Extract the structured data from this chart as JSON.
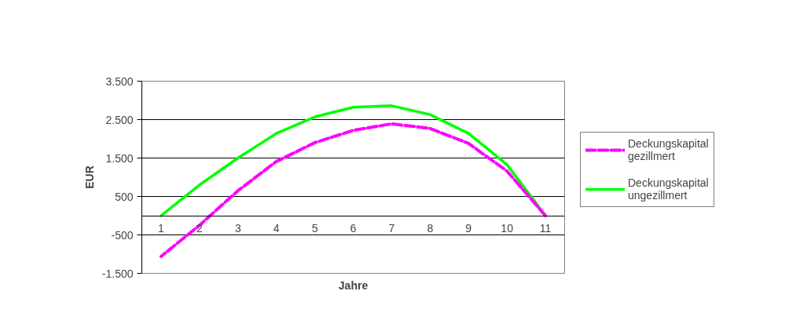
{
  "chart_data": {
    "type": "line",
    "xlabel": "Jahre",
    "ylabel": "EUR",
    "categories": [
      "1",
      "2",
      "3",
      "4",
      "5",
      "6",
      "7",
      "8",
      "9",
      "10",
      "11"
    ],
    "series": [
      {
        "name": "Deckungskapital gezillmert",
        "color": "#ff00ff",
        "line_style": "dashed",
        "values": [
          -1060,
          -250,
          650,
          1410,
          1900,
          2220,
          2390,
          2270,
          1880,
          1160,
          0
        ]
      },
      {
        "name": "Deckungskapital ungezillmert",
        "color": "#00ff00",
        "line_style": "solid",
        "values": [
          0,
          800,
          1500,
          2140,
          2570,
          2820,
          2860,
          2630,
          2140,
          1330,
          0
        ]
      }
    ],
    "ylim": [
      -1500,
      3500
    ],
    "yticks": [
      {
        "value": -1500,
        "label": "-1.500"
      },
      -500,
      500,
      {
        "value": 1500,
        "label": "1.500"
      },
      {
        "value": 2500,
        "label": "2.500"
      },
      {
        "value": 3500,
        "label": "3.500"
      }
    ],
    "grid": "y",
    "legend": "right",
    "marker": "none"
  }
}
